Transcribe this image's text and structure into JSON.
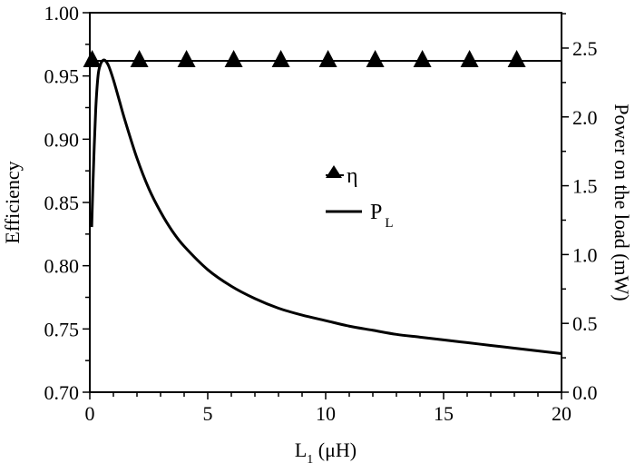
{
  "chart_data": {
    "type": "line",
    "title": "",
    "xlabel": "L1 (μH)",
    "ylabel": "Efficiency",
    "y2label": "Power on the load (mW)",
    "xlim": [
      0,
      20
    ],
    "ylim": [
      0.7,
      1.0
    ],
    "y2lim": [
      0.0,
      2.757
    ],
    "x_ticks": [
      "0",
      "5",
      "10",
      "15",
      "20"
    ],
    "y_ticks": [
      "0.70",
      "0.75",
      "0.80",
      "0.85",
      "0.90",
      "0.95",
      "1.00"
    ],
    "y2_ticks": [
      "0.0",
      "0.5",
      "1.0",
      "1.5",
      "2.0",
      "2.5"
    ],
    "grid": false,
    "legend_position": "center",
    "series": [
      {
        "name": "η",
        "axis": "left",
        "marker": "filled-triangle",
        "x": [
          0,
          0.1,
          2,
          4,
          6,
          8,
          10,
          12,
          14,
          16,
          18,
          20
        ],
        "values": [
          0.962,
          0.962,
          0.962,
          0.962,
          0.962,
          0.962,
          0.962,
          0.962,
          0.962,
          0.962,
          0.962,
          0.962
        ],
        "marker_x": [
          0.1,
          2.1,
          4.1,
          6.1,
          8.1,
          10.1,
          12.1,
          14.1,
          16.1,
          18.1
        ]
      },
      {
        "name": "P_L",
        "axis": "right",
        "marker": "none",
        "x": [
          0.08,
          0.15,
          0.25,
          0.35,
          0.45,
          0.55,
          0.65,
          0.8,
          1.0,
          1.25,
          1.5,
          2.0,
          2.5,
          3.0,
          3.5,
          4.0,
          5.0,
          6.0,
          7.0,
          8.0,
          9.0,
          10.0,
          11.0,
          12.0,
          13.0,
          14.0,
          15.0,
          16.0,
          17.0,
          18.0,
          19.0,
          20.0
        ],
        "values": [
          1.2,
          1.6,
          2.05,
          2.3,
          2.38,
          2.41,
          2.41,
          2.37,
          2.27,
          2.12,
          1.97,
          1.7,
          1.48,
          1.31,
          1.17,
          1.06,
          0.89,
          0.77,
          0.68,
          0.61,
          0.56,
          0.52,
          0.48,
          0.45,
          0.42,
          0.4,
          0.38,
          0.36,
          0.34,
          0.32,
          0.3,
          0.28
        ]
      }
    ]
  },
  "legend": {
    "eta_label": "η",
    "pl_label": "P",
    "pl_sub": "L"
  },
  "axes": {
    "x_title_main": "L",
    "x_title_sub": "1",
    "x_title_unit": " (μH)",
    "y_title": "Efficiency",
    "y2_title": "Power on the load (mW)"
  }
}
